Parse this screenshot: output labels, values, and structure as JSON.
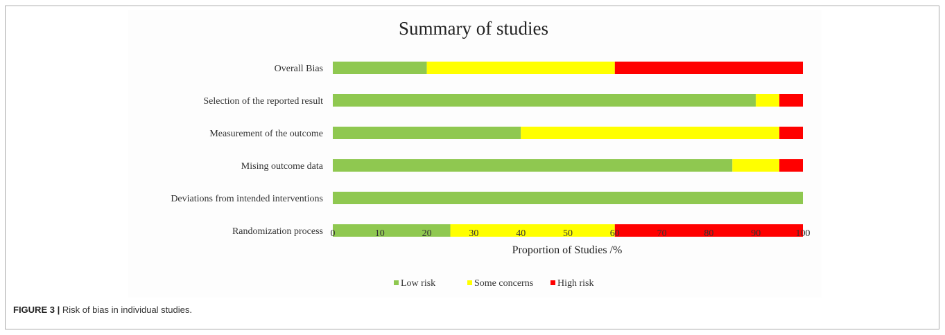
{
  "caption": {
    "figure_label": "FIGURE 3 |",
    "text": "Risk of bias in individual studies."
  },
  "chart_data": {
    "type": "bar",
    "orientation": "horizontal",
    "stacked": true,
    "title": "Summary of studies",
    "xlabel": "Proportion of Studies /%",
    "ylabel": "",
    "xlim": [
      0,
      100
    ],
    "xticks": [
      0,
      10,
      20,
      30,
      40,
      50,
      60,
      70,
      80,
      90,
      100
    ],
    "grid": false,
    "legend_position": "bottom",
    "categories": [
      "Overall Bias",
      "Selection of the reported result",
      "Measurement of the outcome",
      "Mising outcome data",
      "Deviations from intended interventions",
      "Randomization process"
    ],
    "series": [
      {
        "name": "Low risk",
        "color": "#8fc850",
        "values": [
          20,
          90,
          40,
          85,
          100,
          25
        ]
      },
      {
        "name": "Some concerns",
        "color": "#ffff00",
        "values": [
          40,
          5,
          55,
          10,
          0,
          35
        ]
      },
      {
        "name": "High risk",
        "color": "#ff0000",
        "values": [
          40,
          5,
          5,
          5,
          0,
          40
        ]
      }
    ]
  }
}
